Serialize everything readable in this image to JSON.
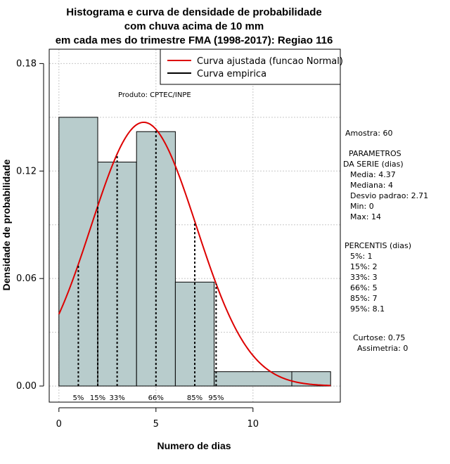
{
  "chart_data": {
    "type": "bar",
    "title": [
      "Histograma e curva de densidade de probabilidade",
      "com chuva acima de 10 mm",
      "em cada mes do trimestre FMA (1998-2017): Regiao 116"
    ],
    "xlabel": "Numero de dias",
    "ylabel": "Densidade de probabilidade",
    "xlim": [
      -0.5,
      14.5
    ],
    "ylim": [
      -0.009,
      0.188
    ],
    "x_ticks": [
      0,
      5,
      10
    ],
    "x_tick_labels": [
      "0",
      "5",
      "10"
    ],
    "y_ticks": [
      0.0,
      0.06,
      0.12,
      0.18
    ],
    "y_tick_labels": [
      "0.00",
      "0.06",
      "0.12",
      "0.18"
    ],
    "grid": true,
    "histogram": {
      "bins": [
        {
          "from": 0,
          "to": 2,
          "density": 0.15
        },
        {
          "from": 2,
          "to": 4,
          "density": 0.125
        },
        {
          "from": 4,
          "to": 6,
          "density": 0.142
        },
        {
          "from": 6,
          "to": 8,
          "density": 0.058
        },
        {
          "from": 8,
          "to": 12,
          "density": 0.008
        },
        {
          "from": 12,
          "to": 14,
          "density": 0.008
        }
      ],
      "fill": "#b8cccc",
      "stroke": "#000000"
    },
    "normal_curve": {
      "mean": 4.37,
      "sd": 2.71,
      "x_from": 0,
      "x_to": 14,
      "color": "#dd0000"
    },
    "percentiles": [
      {
        "label": "5%",
        "x": 1
      },
      {
        "label": "15%",
        "x": 2
      },
      {
        "label": "33%",
        "x": 3
      },
      {
        "label": "66%",
        "x": 5
      },
      {
        "label": "85%",
        "x": 7
      },
      {
        "label": "95%",
        "x": 8.1
      }
    ],
    "legend": {
      "placement": "top-right",
      "items": [
        {
          "label": "Curva ajustada (funcao Normal)",
          "color": "#dd0000"
        },
        {
          "label": "Curva empirica",
          "color": "#000000"
        }
      ]
    },
    "annotation": "Produto: CPTEC/INPE"
  },
  "stats_panel": {
    "amostra": "Amostra: 60",
    "param_title_1": "PARAMETROS",
    "param_title_2": "DA SERIE (dias)",
    "media": "Media: 4.37",
    "mediana": "Mediana: 4",
    "desvio": "Desvio padrao: 2.71",
    "min": "Min: 0",
    "max": "Max: 14",
    "perc_title": "PERCENTIS (dias)",
    "p5": "5%: 1",
    "p15": "15%: 2",
    "p33": "33%: 3",
    "p66": "66%: 5",
    "p85": "85%: 7",
    "p95": "95%: 8.1",
    "curtose": "Curtose: 0.75",
    "assimetria": "Assimetria: 0"
  }
}
